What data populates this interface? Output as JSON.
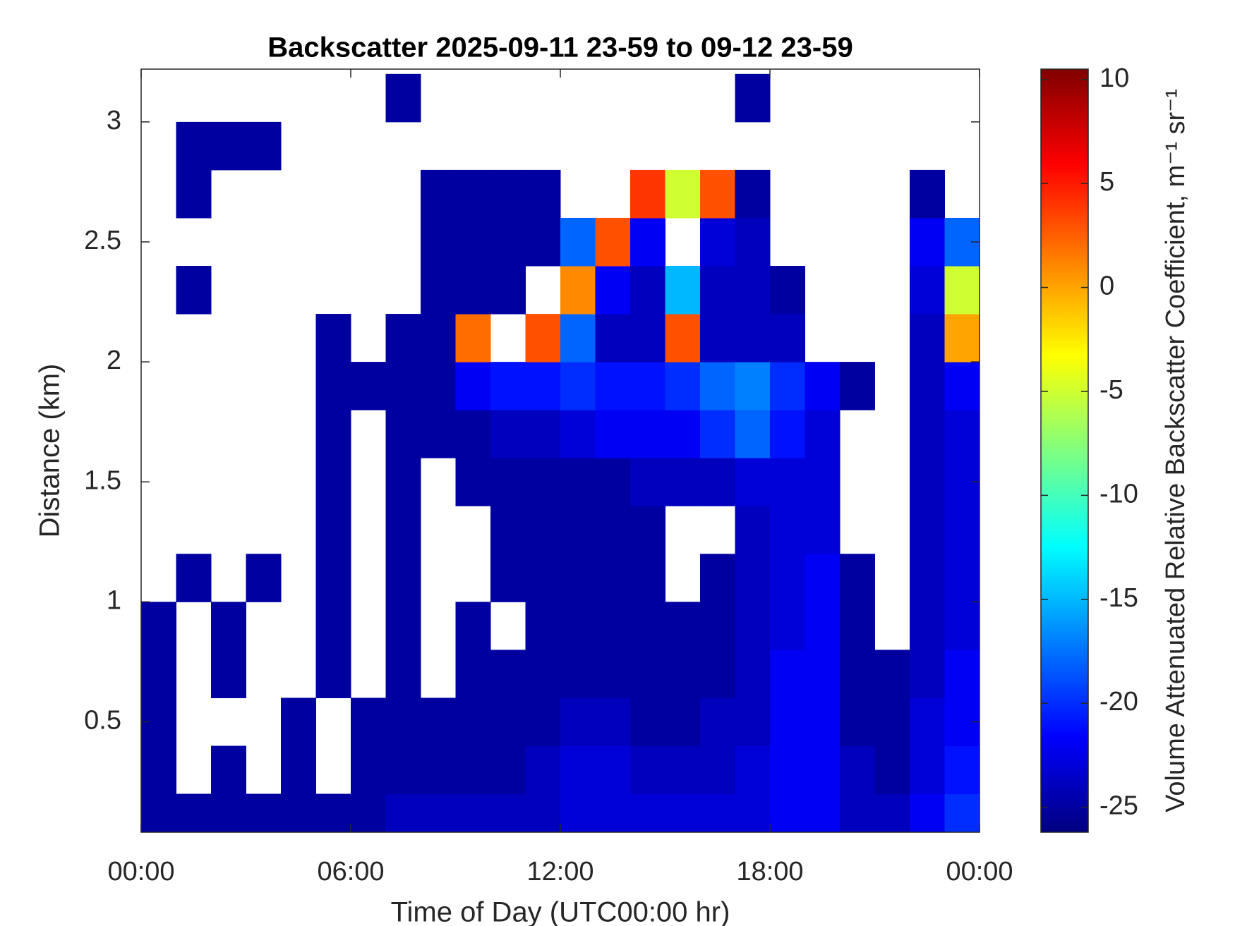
{
  "chart_data": {
    "type": "heatmap",
    "title": "Backscatter 2025-09-11 23-59 to 09-12 23-59",
    "xlabel": "Time of Day (UTC00:00 hr)",
    "ylabel": "Distance (km)",
    "zlabel": "Volume Attenuated Relative Backscatter Coefficient, m⁻¹ sr⁻¹",
    "colormap": "jet",
    "xlim": [
      0,
      24
    ],
    "xticks": [
      {
        "value": 0,
        "label": "00:00"
      },
      {
        "value": 6,
        "label": "06:00"
      },
      {
        "value": 12,
        "label": "12:00"
      },
      {
        "value": 18,
        "label": "18:00"
      },
      {
        "value": 24,
        "label": "00:00"
      }
    ],
    "ylim": [
      0.04,
      3.22
    ],
    "yticks": [
      0.5,
      1,
      1.5,
      2,
      2.5,
      3
    ],
    "zlim": [
      -26.2,
      10.5
    ],
    "zticks": [
      -25,
      -20,
      -15,
      -10,
      -5,
      0,
      5,
      10
    ],
    "x": [
      0.5,
      1.5,
      2.5,
      3.5,
      4.5,
      5.5,
      6.5,
      7.5,
      8.5,
      9.5,
      10.5,
      11.5,
      12.5,
      13.5,
      14.5,
      15.5,
      16.5,
      17.5,
      18.5,
      19.5,
      20.5,
      21.5,
      22.5,
      23.5
    ],
    "y": [
      0.1,
      0.3,
      0.5,
      0.7,
      0.9,
      1.1,
      1.3,
      1.5,
      1.7,
      1.9,
      2.1,
      2.3,
      2.5,
      2.7,
      2.9,
      3.1
    ],
    "z": [
      [
        -25,
        -25,
        -25,
        -25,
        -25,
        -25,
        -25,
        -24,
        -24,
        -24,
        -24,
        -24,
        -23,
        -23,
        -23,
        -23,
        -23,
        -23,
        -22,
        -22,
        -24,
        -24,
        -22,
        -20
      ],
      [
        -25,
        null,
        -25,
        null,
        -25,
        null,
        -25,
        -25,
        -25,
        -25,
        -25,
        -24,
        -23,
        -23,
        -24,
        -24,
        -24,
        -23,
        -22,
        -22,
        -24,
        -25,
        -23,
        -21
      ],
      [
        -25,
        null,
        null,
        null,
        -25,
        null,
        -25,
        -25,
        -25,
        -25,
        -25,
        -25,
        -24,
        -24,
        -25,
        -25,
        -24,
        -24,
        -22,
        -22,
        -25,
        -25,
        -23,
        -22
      ],
      [
        -25,
        null,
        -25,
        null,
        null,
        -25,
        null,
        -25,
        null,
        -25,
        -25,
        -25,
        -25,
        -25,
        -25,
        -25,
        -25,
        -24,
        -22,
        -22,
        -25,
        -25,
        -24,
        -22
      ],
      [
        -25,
        null,
        -25,
        null,
        null,
        -25,
        null,
        -25,
        null,
        -25,
        null,
        -25,
        -25,
        -25,
        -25,
        -25,
        -25,
        -24,
        -23,
        -22,
        -25,
        null,
        -24,
        -23
      ],
      [
        null,
        -25,
        null,
        -25,
        null,
        -25,
        null,
        -25,
        null,
        null,
        -25,
        -25,
        -25,
        -25,
        -25,
        null,
        -25,
        -24,
        -23,
        -22,
        -25,
        null,
        -24,
        -23
      ],
      [
        null,
        null,
        null,
        null,
        null,
        -25,
        null,
        -25,
        null,
        null,
        -25,
        -25,
        -25,
        -25,
        -25,
        null,
        null,
        -24,
        -23,
        -23,
        null,
        null,
        -24,
        -23
      ],
      [
        null,
        null,
        null,
        null,
        null,
        -25,
        null,
        -25,
        null,
        -25,
        -25,
        -25,
        -25,
        -25,
        -24,
        -24,
        -24,
        -23,
        -23,
        -23,
        null,
        null,
        -24,
        -23
      ],
      [
        null,
        null,
        null,
        null,
        null,
        -25,
        null,
        -25,
        -25,
        -25,
        -24,
        -24,
        -23,
        -22,
        -22,
        -22,
        -20,
        -18,
        -21,
        -23,
        null,
        null,
        -24,
        -23
      ],
      [
        null,
        null,
        null,
        null,
        null,
        -25,
        -25,
        -25,
        -25,
        -22,
        -21,
        -21,
        -20,
        -21,
        -21,
        -20,
        -18,
        -17,
        -20,
        -22,
        -25,
        null,
        -24,
        -22
      ],
      [
        null,
        null,
        null,
        null,
        null,
        -25,
        null,
        -25,
        -25,
        2,
        null,
        3,
        -18,
        -24,
        -24,
        3,
        -24,
        -24,
        -24,
        null,
        null,
        null,
        -24,
        0
      ],
      [
        null,
        -25,
        null,
        null,
        null,
        null,
        null,
        null,
        -25,
        -25,
        -25,
        null,
        1,
        -22,
        -24,
        -15,
        -24,
        -24,
        -25,
        null,
        null,
        null,
        -23,
        -5
      ],
      [
        null,
        null,
        null,
        null,
        null,
        null,
        null,
        null,
        -25,
        -25,
        -25,
        -25,
        -18,
        3,
        -22,
        null,
        -23,
        -24,
        null,
        null,
        null,
        null,
        -22,
        -18
      ],
      [
        null,
        -25,
        null,
        null,
        null,
        null,
        null,
        null,
        -25,
        -25,
        -25,
        -25,
        null,
        null,
        4,
        -5,
        3,
        -25,
        null,
        null,
        null,
        null,
        -25,
        null
      ],
      [
        null,
        -25,
        -25,
        -25,
        null,
        null,
        null,
        null,
        null,
        null,
        null,
        null,
        null,
        null,
        null,
        null,
        null,
        null,
        null,
        null,
        null,
        null,
        null,
        null
      ],
      [
        null,
        null,
        null,
        null,
        null,
        null,
        null,
        -25,
        null,
        null,
        null,
        null,
        null,
        null,
        null,
        null,
        null,
        -25,
        null,
        null,
        null,
        null,
        null,
        null
      ]
    ]
  }
}
